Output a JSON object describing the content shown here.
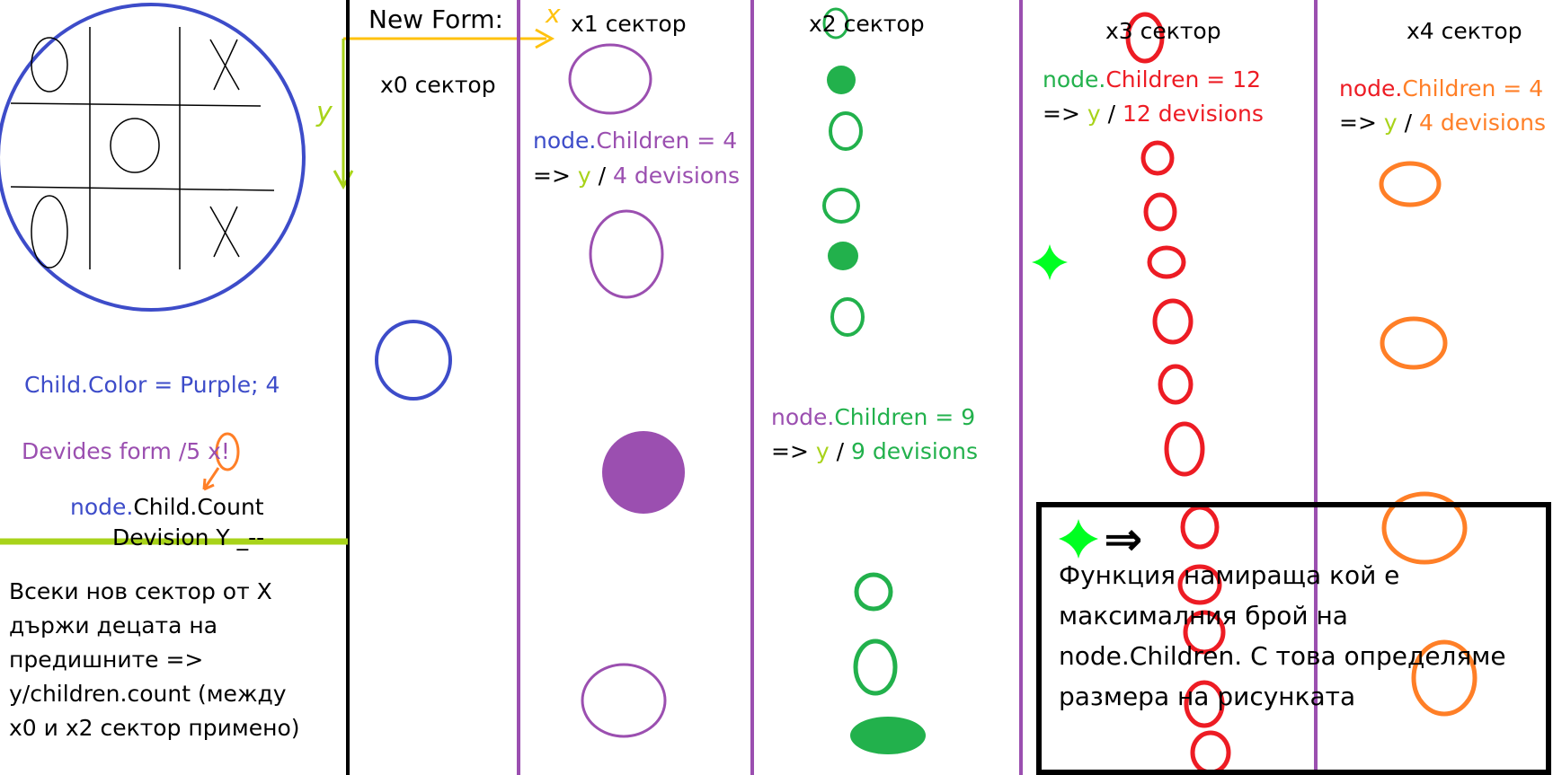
{
  "colors": {
    "black": "#000000",
    "blue": "#3d4cc9",
    "purple": "#9b4fb0",
    "green": "#22b14c",
    "red": "#ed1c24",
    "orange": "#ff7f27",
    "lime": "#a8d31a",
    "yellow": "#ffc20e",
    "bright_green": "#00ff21"
  },
  "board": {
    "cells": [
      "O",
      "",
      "X",
      "",
      "O",
      "",
      "O",
      "",
      "X"
    ]
  },
  "axes": {
    "form_label": "New Form:",
    "x_label": "x",
    "y_label": "y"
  },
  "sectors": [
    {
      "label": "x0 сектор"
    },
    {
      "label": "x1 сектор"
    },
    {
      "label": "x2 сектор"
    },
    {
      "label": "x3 сектор"
    },
    {
      "label": "x4 сектор"
    }
  ],
  "annotations": {
    "x1": {
      "node": "node.",
      "children": "Children = 4",
      "arrow": "=>",
      "y": "y",
      "slash": "/",
      "divisions": "4 devisions"
    },
    "x2": {
      "node": "node.",
      "children": "Children = 9",
      "arrow": "=>",
      "y": "y",
      "slash": "/",
      "divisions": "9 devisions"
    },
    "x3": {
      "node": "node.",
      "children": "Children = 12",
      "arrow": "=>",
      "y": "y",
      "slash": "/",
      "divisions": "12 devisions"
    },
    "x4": {
      "node": "node.",
      "children": "Children = 4",
      "arrow": "=>",
      "y": "y",
      "slash": "/",
      "divisions": "4 devisions"
    }
  },
  "left_notes": {
    "child_color": "Child.Color = Purple; 4",
    "devides_form": "Devides form /5 x!",
    "node_word": "node.",
    "child_count": "Child.Count",
    "devision_y": "Devision Y _--"
  },
  "bottom_left_note": [
    "Всеки нов сектор от X",
    "държи децата на",
    "предишните =>",
    "y/children.count (между",
    "x0 и x2 сектор примено)"
  ],
  "info_box": {
    "arrow_symbol": "⇒",
    "lines": [
      "Функция намираща кой е",
      "максималния брой на",
      "node.Children. С това определяме",
      "размера на рисунката"
    ]
  }
}
